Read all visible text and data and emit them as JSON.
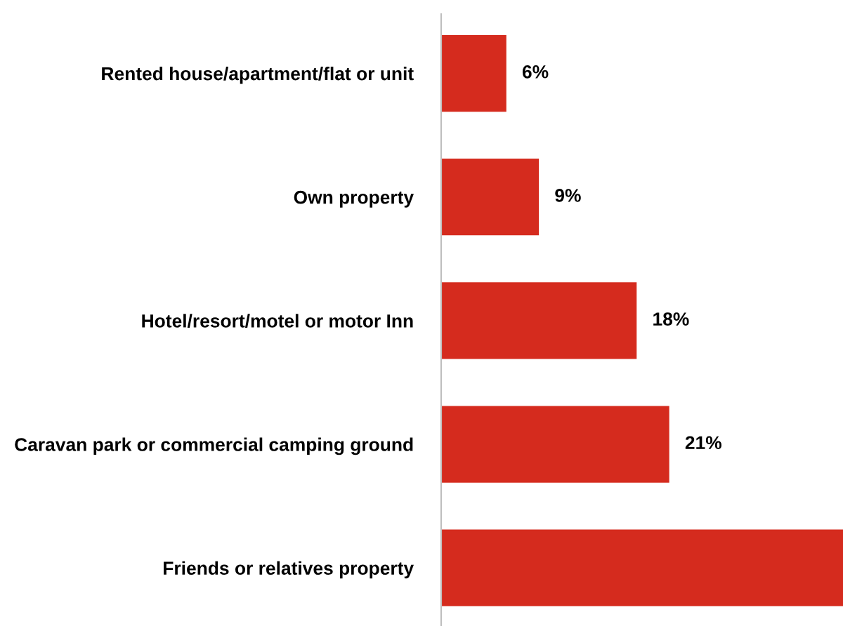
{
  "chart_data": {
    "type": "bar",
    "orientation": "horizontal",
    "categories": [
      "Rented house/apartment/flat or unit",
      "Own property",
      "Hotel/resort/motel or motor Inn",
      "Caravan park or commercial camping ground",
      "Friends or relatives property"
    ],
    "values": [
      6,
      9,
      18,
      21,
      37
    ],
    "value_labels": [
      "6%",
      "9%",
      "18%",
      "21%",
      null
    ],
    "color": "#d52b1e",
    "grid": false,
    "legend": false
  }
}
